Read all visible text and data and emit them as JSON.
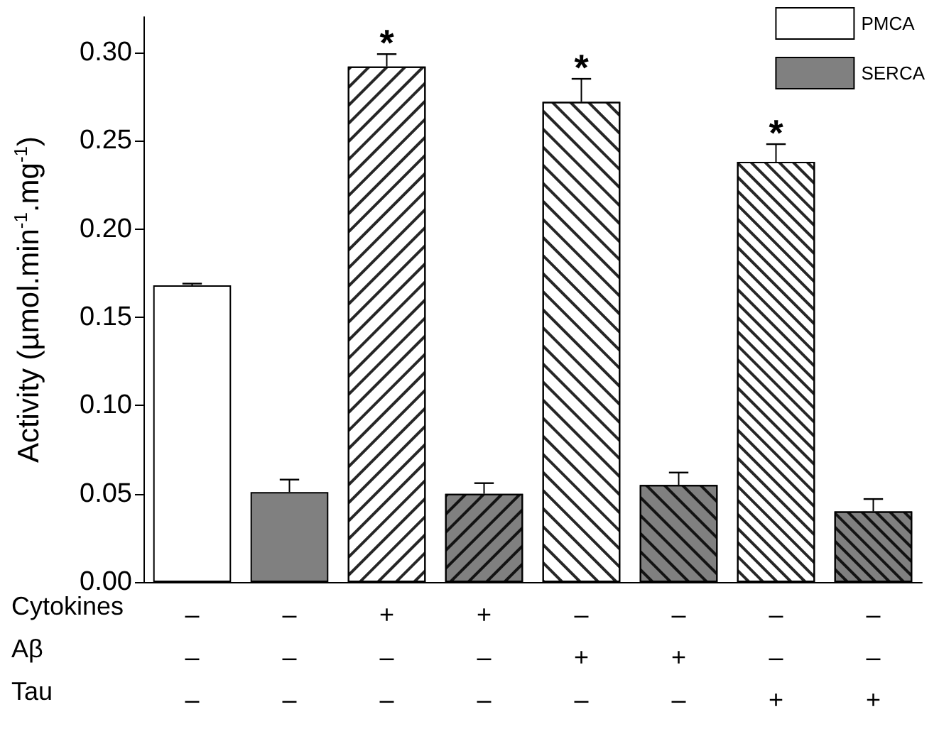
{
  "chart_data": {
    "type": "bar",
    "ylabel": "Activity (µmol.min$^{-1}$.mg$^{-1}$)",
    "categories": [
      "–\n–\n–",
      "–\n–\n–",
      "+\n–\n–",
      "+\n–\n–",
      "–\n+\n–",
      "–\n+\n–",
      "–\n–\n+",
      "–\n–\n+"
    ],
    "series": [
      {
        "name": "PMCA",
        "color": "#ffffff",
        "values": [
          0.168,
          null,
          0.292,
          null,
          0.272,
          null,
          0.238,
          null
        ],
        "errors": [
          0.001,
          null,
          0.007,
          null,
          0.013,
          null,
          0.01,
          null
        ],
        "value_labels": [
          null,
          null,
          "*",
          null,
          "*",
          null,
          "*",
          null
        ]
      },
      {
        "name": "SERCA",
        "color": "#808080",
        "values": [
          null,
          0.051,
          null,
          0.05,
          null,
          0.055,
          null,
          0.04
        ],
        "errors": [
          null,
          0.007,
          null,
          0.006,
          null,
          0.007,
          null,
          0.007
        ]
      }
    ],
    "annotations": [
      "Cytokines",
      "Aβ",
      "Tau"
    ],
    "ylim": [
      0,
      0.32
    ],
    "yticks": [
      {
        "value": 0,
        "label": "0.00"
      },
      {
        "value": 0.05,
        "label": "0.05"
      },
      {
        "value": 0.1,
        "label": "0.10"
      },
      {
        "value": 0.15,
        "label": "0.15"
      },
      {
        "value": 0.2,
        "label": "0.20"
      },
      {
        "value": 0.25,
        "label": "0.25"
      },
      {
        "value": 0.3,
        "label": "0.30"
      }
    ],
    "legend": "top right",
    "grid": false
  }
}
